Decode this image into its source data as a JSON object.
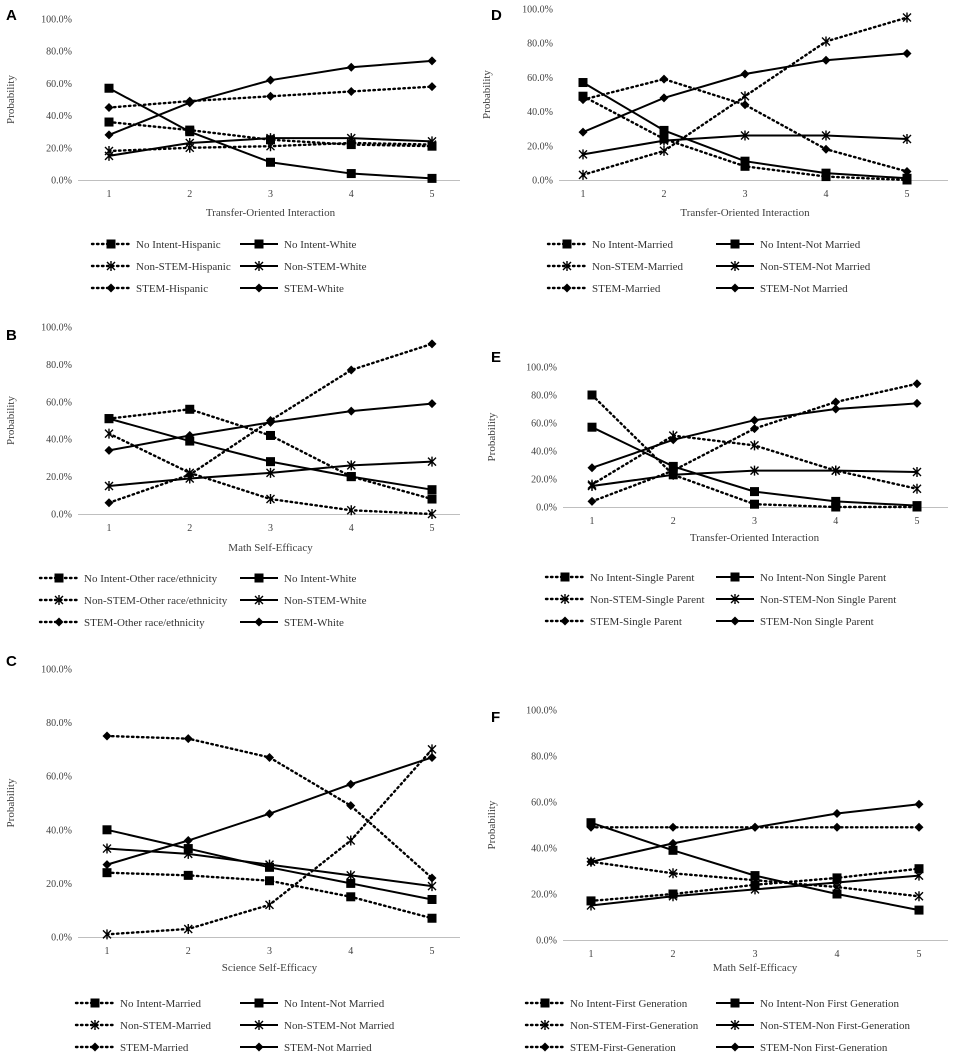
{
  "chart_data": [
    {
      "panel": "A",
      "type": "line",
      "xlabel": "Transfer-Oriented Interaction",
      "ylabel": "Probability",
      "x": [
        1,
        2,
        3,
        4,
        5
      ],
      "yticks": [
        "0.0%",
        "20.0%",
        "40.0%",
        "60.0%",
        "80.0%",
        "100.0%"
      ],
      "ylim": [
        0,
        100
      ],
      "grid": false,
      "series": [
        {
          "name": "No Intent-Hispanic",
          "style": "dotted",
          "marker": "square",
          "values": [
            36,
            31,
            25,
            22,
            21
          ]
        },
        {
          "name": "No Intent-White",
          "style": "solid",
          "marker": "square",
          "values": [
            57,
            30,
            11,
            4,
            1
          ]
        },
        {
          "name": "Non-STEM-Hispanic",
          "style": "dotted",
          "marker": "star",
          "values": [
            18,
            20,
            21,
            23,
            22
          ]
        },
        {
          "name": "Non-STEM-White",
          "style": "solid",
          "marker": "star",
          "values": [
            15,
            23,
            26,
            26,
            24
          ]
        },
        {
          "name": "STEM-Hispanic",
          "style": "dotted",
          "marker": "diamond",
          "values": [
            45,
            49,
            52,
            55,
            58
          ]
        },
        {
          "name": "STEM-White",
          "style": "solid",
          "marker": "diamond",
          "values": [
            28,
            48,
            62,
            70,
            74
          ]
        }
      ]
    },
    {
      "panel": "B",
      "type": "line",
      "xlabel": "Math Self-Efficacy",
      "ylabel": "Probability",
      "x": [
        1,
        2,
        3,
        4,
        5
      ],
      "yticks": [
        "0.0%",
        "20.0%",
        "40.0%",
        "60.0%",
        "80.0%",
        "100.0%"
      ],
      "ylim": [
        0,
        100
      ],
      "grid": false,
      "series": [
        {
          "name": "No Intent-Other race/ethnicity",
          "style": "dotted",
          "marker": "square",
          "values": [
            51,
            56,
            42,
            20,
            8
          ]
        },
        {
          "name": "No Intent-White",
          "style": "solid",
          "marker": "square",
          "values": [
            51,
            39,
            28,
            20,
            13
          ]
        },
        {
          "name": "Non-STEM-Other race/ethnicity",
          "style": "dotted",
          "marker": "star",
          "values": [
            43,
            22,
            8,
            2,
            0
          ]
        },
        {
          "name": "Non-STEM-White",
          "style": "solid",
          "marker": "star",
          "values": [
            15,
            19,
            22,
            26,
            28
          ]
        },
        {
          "name": "STEM-Other race/ethnicity",
          "style": "dotted",
          "marker": "diamond",
          "values": [
            6,
            21,
            50,
            77,
            91
          ]
        },
        {
          "name": "STEM-White",
          "style": "solid",
          "marker": "diamond",
          "values": [
            34,
            42,
            49,
            55,
            59
          ]
        }
      ]
    },
    {
      "panel": "C",
      "type": "line",
      "xlabel": "Science Self-Efficacy",
      "ylabel": "Probability",
      "x": [
        1,
        2,
        3,
        4,
        5
      ],
      "yticks": [
        "0.0%",
        "20.0%",
        "40.0%",
        "60.0%",
        "80.0%",
        "100.0%"
      ],
      "ylim": [
        0,
        100
      ],
      "grid": false,
      "series": [
        {
          "name": "No Intent-Married",
          "style": "dotted",
          "marker": "square",
          "values": [
            24,
            23,
            21,
            15,
            7
          ]
        },
        {
          "name": "No Intent-Not Married",
          "style": "solid",
          "marker": "square",
          "values": [
            40,
            33,
            26,
            20,
            14
          ]
        },
        {
          "name": "Non-STEM-Married",
          "style": "dotted",
          "marker": "star",
          "values": [
            1,
            3,
            12,
            36,
            70
          ]
        },
        {
          "name": "Non-STEM-Not Married",
          "style": "solid",
          "marker": "star",
          "values": [
            33,
            31,
            27,
            23,
            19
          ]
        },
        {
          "name": "STEM-Married",
          "style": "dotted",
          "marker": "diamond",
          "values": [
            75,
            74,
            67,
            49,
            22
          ]
        },
        {
          "name": "STEM-Not Married",
          "style": "solid",
          "marker": "diamond",
          "values": [
            27,
            36,
            46,
            57,
            67
          ]
        }
      ]
    },
    {
      "panel": "D",
      "type": "line",
      "xlabel": "Transfer-Oriented Interaction",
      "ylabel": "Probability",
      "x": [
        1,
        2,
        3,
        4,
        5
      ],
      "yticks": [
        "0.0%",
        "20.0%",
        "40.0%",
        "60.0%",
        "80.0%",
        "100.0%"
      ],
      "ylim": [
        0,
        100
      ],
      "grid": false,
      "series": [
        {
          "name": "No Intent-Married",
          "style": "dotted",
          "marker": "square",
          "values": [
            49,
            24,
            8,
            2,
            0
          ]
        },
        {
          "name": "No Intent-Not Married",
          "style": "solid",
          "marker": "square",
          "values": [
            57,
            29,
            11,
            4,
            1
          ]
        },
        {
          "name": "Non-STEM-Married",
          "style": "dotted",
          "marker": "star",
          "values": [
            3,
            17,
            49,
            81,
            95
          ]
        },
        {
          "name": "Non-STEM-Not Married",
          "style": "solid",
          "marker": "star",
          "values": [
            15,
            23,
            26,
            26,
            24
          ]
        },
        {
          "name": "STEM-Married",
          "style": "dotted",
          "marker": "diamond",
          "values": [
            47,
            59,
            44,
            18,
            5
          ]
        },
        {
          "name": "STEM-Not Married",
          "style": "solid",
          "marker": "diamond",
          "values": [
            28,
            48,
            62,
            70,
            74
          ]
        }
      ]
    },
    {
      "panel": "E",
      "type": "line",
      "xlabel": "Transfer-Oriented Interaction",
      "ylabel": "Probability",
      "x": [
        1,
        2,
        3,
        4,
        5
      ],
      "yticks": [
        "0.0%",
        "20.0%",
        "40.0%",
        "60.0%",
        "80.0%",
        "100.0%"
      ],
      "ylim": [
        0,
        100
      ],
      "grid": false,
      "series": [
        {
          "name": "No Intent-Single Parent",
          "style": "dotted",
          "marker": "square",
          "values": [
            80,
            23,
            2,
            0,
            0
          ]
        },
        {
          "name": "No Intent-Non Single Parent",
          "style": "solid",
          "marker": "square",
          "values": [
            57,
            29,
            11,
            4,
            1
          ]
        },
        {
          "name": "Non-STEM-Single Parent",
          "style": "dotted",
          "marker": "star",
          "values": [
            16,
            51,
            44,
            26,
            13
          ]
        },
        {
          "name": "Non-STEM-Non Single Parent",
          "style": "solid",
          "marker": "star",
          "values": [
            15,
            23,
            26,
            26,
            25
          ]
        },
        {
          "name": "STEM-Single Parent",
          "style": "dotted",
          "marker": "diamond",
          "values": [
            4,
            26,
            56,
            75,
            88
          ]
        },
        {
          "name": "STEM-Non Single Parent",
          "style": "solid",
          "marker": "diamond",
          "values": [
            28,
            48,
            62,
            70,
            74
          ]
        }
      ]
    },
    {
      "panel": "F",
      "type": "line",
      "xlabel": "Math Self-Efficacy",
      "ylabel": "Probability",
      "x": [
        1,
        2,
        3,
        4,
        5
      ],
      "yticks": [
        "0.0%",
        "20.0%",
        "40.0%",
        "60.0%",
        "80.0%",
        "100.0%"
      ],
      "ylim": [
        0,
        100
      ],
      "grid": false,
      "series": [
        {
          "name": "No Intent-First Generation",
          "style": "dotted",
          "marker": "square",
          "values": [
            17,
            20,
            24,
            27,
            31
          ]
        },
        {
          "name": "No Intent-Non First Generation",
          "style": "solid",
          "marker": "square",
          "values": [
            51,
            39,
            28,
            20,
            13
          ]
        },
        {
          "name": "Non-STEM-First-Generation",
          "style": "dotted",
          "marker": "star",
          "values": [
            34,
            29,
            26,
            23,
            19
          ]
        },
        {
          "name": "Non-STEM-Non First-Generation",
          "style": "solid",
          "marker": "star",
          "values": [
            15,
            19,
            22,
            25,
            28
          ]
        },
        {
          "name": "STEM-First-Generation",
          "style": "dotted",
          "marker": "diamond",
          "values": [
            49,
            49,
            49,
            49,
            49
          ]
        },
        {
          "name": "STEM-Non First-Generation",
          "style": "solid",
          "marker": "diamond",
          "values": [
            34,
            42,
            49,
            55,
            59
          ]
        }
      ]
    }
  ]
}
